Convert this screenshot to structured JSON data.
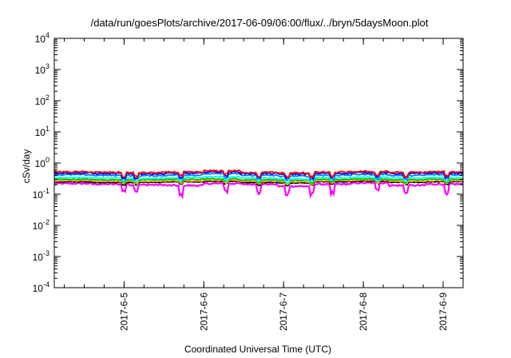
{
  "chart_data": {
    "type": "line",
    "title": "/data/run/goesPlots/archive/2017-06-09/06:00/flux/../bryn/5daysMoon.plot",
    "xlabel": "Coordinated Universal Time (UTC)",
    "ylabel": "cSv/day",
    "yscale": "log",
    "ylim": [
      0.0001,
      10000
    ],
    "ytick_base": "10",
    "ytick_exponents": [
      "-4",
      "-3",
      "-2",
      "-1",
      "0",
      "1",
      "2",
      "3",
      "4"
    ],
    "xlim": [
      "2017-06-04 03:00",
      "2017-06-09 06:00"
    ],
    "xticks": [
      "2017-6-5",
      "2017-6-6",
      "2017-6-7",
      "2017-6-8",
      "2017-6-9"
    ],
    "legend": "none",
    "grid": false,
    "series": [
      {
        "color": "#ff00ff",
        "base": 0.2,
        "noise": 0.12,
        "dip": 0.55,
        "values": [
          0.22,
          0.21,
          0.2,
          0.19,
          0.22,
          0.21,
          0.18,
          0.21,
          0.23,
          0.19,
          0.21
        ]
      },
      {
        "color": "#000000",
        "base": 0.245,
        "noise": 0.06,
        "dip": 0.2,
        "values": [
          0.25,
          0.24,
          0.24,
          0.25,
          0.26,
          0.24,
          0.23,
          0.25,
          0.26,
          0.24,
          0.25
        ]
      },
      {
        "color": "#ffa500",
        "base": 0.26,
        "noise": 0.06,
        "dip": 0.2,
        "values": [
          0.27,
          0.26,
          0.26,
          0.27,
          0.28,
          0.26,
          0.25,
          0.27,
          0.28,
          0.26,
          0.27
        ]
      },
      {
        "color": "#00c000",
        "base": 0.29,
        "noise": 0.07,
        "dip": 0.2,
        "values": [
          0.3,
          0.29,
          0.29,
          0.3,
          0.31,
          0.29,
          0.28,
          0.3,
          0.31,
          0.29,
          0.3
        ]
      },
      {
        "color": "#00ffff",
        "base": 0.33,
        "noise": 0.08,
        "dip": 0.25,
        "values": [
          0.34,
          0.33,
          0.32,
          0.34,
          0.36,
          0.33,
          0.31,
          0.34,
          0.35,
          0.33,
          0.34
        ]
      },
      {
        "color": "#0080ff",
        "base": 0.4,
        "noise": 0.1,
        "dip": 0.3,
        "values": [
          0.42,
          0.4,
          0.39,
          0.41,
          0.45,
          0.4,
          0.38,
          0.41,
          0.43,
          0.4,
          0.42
        ]
      },
      {
        "color": "#0000ff",
        "base": 0.46,
        "noise": 0.12,
        "dip": 0.3,
        "values": [
          0.48,
          0.46,
          0.45,
          0.47,
          0.52,
          0.46,
          0.44,
          0.47,
          0.49,
          0.46,
          0.48
        ]
      },
      {
        "color": "#ff0000",
        "base": 0.5,
        "noise": 0.12,
        "dip": 0.3,
        "values": [
          0.52,
          0.5,
          0.49,
          0.51,
          0.56,
          0.5,
          0.48,
          0.51,
          0.53,
          0.5,
          0.52
        ]
      }
    ]
  }
}
